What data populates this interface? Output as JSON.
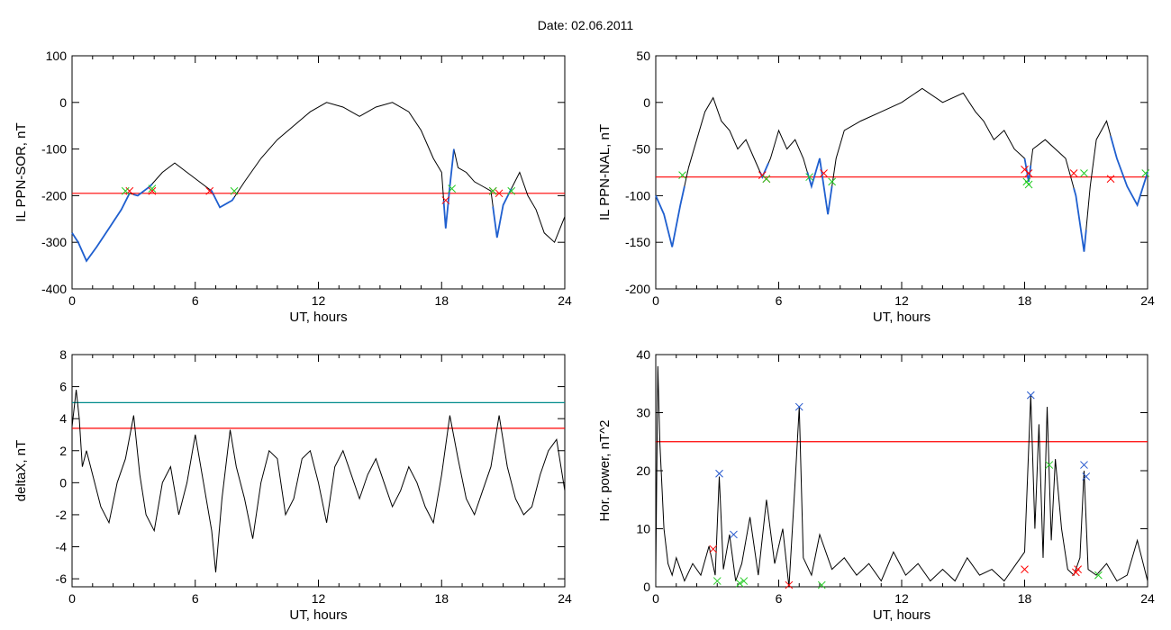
{
  "figure": {
    "title": "Date:  02.06.2011"
  },
  "colors": {
    "trace": "#000000",
    "threshold": "#ff0000",
    "second_threshold": "#008b8b",
    "disturbed_segment": "#1f5fcf",
    "start_marker": "#ff0000",
    "end_marker": "#22cc22",
    "peak_marker": "#2255cc"
  },
  "chart_data": [
    {
      "id": "sor",
      "type": "line",
      "title": "",
      "xlabel": "UT, hours",
      "ylabel": "IL PPN-SOR, nT",
      "xlim": [
        0,
        24
      ],
      "ylim": [
        -400,
        100
      ],
      "xticks": [
        0,
        6,
        12,
        18,
        24
      ],
      "yticks": [
        -400,
        -300,
        -200,
        -100,
        0,
        100
      ],
      "threshold": -195,
      "x": [
        0,
        0.3,
        0.7,
        1.2,
        1.8,
        2.4,
        2.8,
        3.2,
        3.8,
        4.4,
        5.0,
        5.6,
        6.2,
        6.8,
        7.2,
        7.8,
        8.4,
        9.2,
        10.0,
        10.8,
        11.6,
        12.4,
        13.2,
        14.0,
        14.8,
        15.6,
        16.4,
        17.0,
        17.6,
        18.0,
        18.2,
        18.4,
        18.6,
        18.8,
        19.2,
        19.6,
        20.0,
        20.4,
        20.7,
        21.0,
        21.4,
        21.8,
        22.2,
        22.6,
        23.0,
        23.5,
        24.0
      ],
      "y": [
        -280,
        -300,
        -340,
        -310,
        -270,
        -230,
        -195,
        -200,
        -180,
        -150,
        -130,
        -150,
        -170,
        -190,
        -225,
        -210,
        -170,
        -120,
        -80,
        -50,
        -20,
        0,
        -10,
        -30,
        -10,
        0,
        -20,
        -60,
        -120,
        -150,
        -270,
        -180,
        -100,
        -140,
        -150,
        -170,
        -180,
        -190,
        -290,
        -220,
        -185,
        -150,
        -200,
        -230,
        -280,
        -300,
        -245
      ],
      "disturbed_intervals": [
        [
          0,
          2.8
        ],
        [
          3.0,
          3.9
        ],
        [
          6.7,
          7.9
        ],
        [
          18.1,
          18.6
        ],
        [
          20.5,
          21.4
        ]
      ],
      "start_markers": [
        [
          2.8,
          -190
        ],
        [
          3.9,
          -190
        ],
        [
          6.7,
          -190
        ],
        [
          18.2,
          -210
        ],
        [
          20.5,
          -190
        ],
        [
          20.8,
          -195
        ]
      ],
      "end_markers": [
        [
          2.6,
          -190
        ],
        [
          3.9,
          -185
        ],
        [
          7.9,
          -190
        ],
        [
          18.5,
          -185
        ],
        [
          20.5,
          -190
        ],
        [
          21.4,
          -190
        ]
      ]
    },
    {
      "id": "nal",
      "type": "line",
      "title": "",
      "xlabel": "UT, hours",
      "ylabel": "IL PPN-NAL, nT",
      "xlim": [
        0,
        24
      ],
      "ylim": [
        -200,
        50
      ],
      "xticks": [
        0,
        6,
        12,
        18,
        24
      ],
      "yticks": [
        -200,
        -150,
        -100,
        -50,
        0,
        50
      ],
      "threshold": -80,
      "x": [
        0,
        0.4,
        0.8,
        1.2,
        1.6,
        2.0,
        2.4,
        2.8,
        3.2,
        3.6,
        4.0,
        4.4,
        4.8,
        5.2,
        5.6,
        6.0,
        6.4,
        6.8,
        7.2,
        7.6,
        8.0,
        8.4,
        8.8,
        9.2,
        10.0,
        11.0,
        12.0,
        13.0,
        14.0,
        15.0,
        15.6,
        16.0,
        16.5,
        17.0,
        17.5,
        18.0,
        18.2,
        18.4,
        19.0,
        20.0,
        20.5,
        20.9,
        21.2,
        21.5,
        22.0,
        22.5,
        23.0,
        23.5,
        24.0
      ],
      "y": [
        -100,
        -120,
        -155,
        -110,
        -70,
        -40,
        -10,
        5,
        -20,
        -30,
        -50,
        -40,
        -60,
        -80,
        -60,
        -30,
        -50,
        -40,
        -60,
        -90,
        -60,
        -120,
        -60,
        -30,
        -20,
        -10,
        0,
        15,
        0,
        10,
        -10,
        -20,
        -40,
        -30,
        -50,
        -60,
        -85,
        -50,
        -40,
        -60,
        -100,
        -160,
        -90,
        -40,
        -20,
        -60,
        -90,
        -110,
        -75
      ],
      "disturbed_intervals": [
        [
          0,
          1.4
        ],
        [
          5.1,
          5.5
        ],
        [
          7.4,
          8.6
        ],
        [
          18.0,
          18.3
        ],
        [
          20.4,
          21.0
        ],
        [
          22.2,
          24.0
        ]
      ],
      "start_markers": [
        [
          5.2,
          -78
        ],
        [
          5.4,
          -82
        ],
        [
          8.2,
          -76
        ],
        [
          18.0,
          -72
        ],
        [
          18.2,
          -76
        ],
        [
          20.4,
          -76
        ],
        [
          22.2,
          -82
        ]
      ],
      "end_markers": [
        [
          1.3,
          -78
        ],
        [
          5.4,
          -82
        ],
        [
          7.5,
          -80
        ],
        [
          8.6,
          -85
        ],
        [
          18.1,
          -85
        ],
        [
          18.2,
          -88
        ],
        [
          20.9,
          -76
        ],
        [
          23.9,
          -76
        ]
      ]
    },
    {
      "id": "deltax",
      "type": "line",
      "title": "",
      "xlabel": "UT, hours",
      "ylabel": "deltaX, nT",
      "xlim": [
        0,
        24
      ],
      "ylim": [
        -6.5,
        8
      ],
      "xticks": [
        0,
        6,
        12,
        18,
        24
      ],
      "yticks": [
        -6,
        -4,
        -2,
        0,
        2,
        4,
        6,
        8
      ],
      "thresholds": [
        3.4,
        5.0
      ],
      "x": [
        0,
        0.2,
        0.35,
        0.5,
        0.7,
        1.0,
        1.4,
        1.8,
        2.2,
        2.6,
        3.0,
        3.3,
        3.6,
        4.0,
        4.4,
        4.8,
        5.2,
        5.6,
        6.0,
        6.4,
        6.8,
        7.0,
        7.3,
        7.7,
        8.0,
        8.4,
        8.8,
        9.2,
        9.6,
        10.0,
        10.4,
        10.8,
        11.2,
        11.6,
        12.0,
        12.4,
        12.8,
        13.2,
        13.6,
        14.0,
        14.4,
        14.8,
        15.2,
        15.6,
        16.0,
        16.4,
        16.8,
        17.2,
        17.6,
        18.0,
        18.4,
        18.8,
        19.2,
        19.6,
        20.0,
        20.4,
        20.8,
        21.2,
        21.6,
        22.0,
        22.4,
        22.8,
        23.2,
        23.6,
        24.0
      ],
      "y": [
        3.5,
        5.8,
        4.0,
        1.0,
        2.0,
        0.5,
        -1.5,
        -2.5,
        0.0,
        1.5,
        4.2,
        0.5,
        -2.0,
        -3.0,
        0.0,
        1.0,
        -2.0,
        0.0,
        3.0,
        0.0,
        -3.0,
        -5.6,
        -1.0,
        3.3,
        1.0,
        -1.0,
        -3.5,
        0.0,
        2.0,
        1.5,
        -2.0,
        -1.0,
        1.5,
        2.0,
        0.0,
        -2.5,
        1.0,
        2.0,
        0.5,
        -1.0,
        0.5,
        1.5,
        0.0,
        -1.5,
        -0.5,
        1.0,
        0.0,
        -1.5,
        -2.5,
        0.5,
        4.2,
        1.5,
        -1.0,
        -2.0,
        -0.5,
        1.0,
        4.2,
        1.0,
        -1.0,
        -2.0,
        -1.5,
        0.5,
        2.0,
        2.7,
        -0.5
      ],
      "crossing_x": [
        3.0,
        7.7,
        18.4,
        20.8
      ]
    },
    {
      "id": "power",
      "type": "line",
      "title": "",
      "xlabel": "UT, hours",
      "ylabel": "Hor. power, nT^2",
      "xlim": [
        0,
        24
      ],
      "ylim": [
        0,
        40
      ],
      "xticks": [
        0,
        6,
        12,
        18,
        24
      ],
      "yticks": [
        0,
        10,
        20,
        30,
        40
      ],
      "threshold": 25,
      "x": [
        0,
        0.1,
        0.2,
        0.4,
        0.6,
        0.8,
        1.0,
        1.4,
        1.8,
        2.2,
        2.6,
        2.9,
        3.1,
        3.3,
        3.6,
        3.9,
        4.2,
        4.6,
        5.0,
        5.4,
        5.8,
        6.2,
        6.5,
        6.8,
        7.0,
        7.2,
        7.6,
        8.0,
        8.6,
        9.2,
        9.8,
        10.4,
        11.0,
        11.6,
        12.2,
        12.8,
        13.4,
        14.0,
        14.6,
        15.2,
        15.8,
        16.4,
        17.0,
        17.6,
        18.0,
        18.3,
        18.5,
        18.7,
        18.9,
        19.1,
        19.3,
        19.5,
        19.8,
        20.1,
        20.4,
        20.7,
        20.9,
        21.1,
        21.5,
        22.0,
        22.5,
        23.0,
        23.5,
        24.0
      ],
      "y": [
        2,
        38,
        25,
        10,
        4,
        2,
        5,
        1,
        4,
        2,
        7,
        2,
        19,
        3,
        9,
        1,
        4,
        12,
        2,
        15,
        4,
        10,
        0,
        18,
        31,
        5,
        2,
        9,
        3,
        5,
        2,
        4,
        1,
        6,
        2,
        4,
        1,
        3,
        1,
        5,
        2,
        3,
        1,
        4,
        6,
        33,
        10,
        28,
        5,
        31,
        8,
        22,
        10,
        3,
        2,
        5,
        20,
        3,
        2,
        4,
        1,
        2,
        8,
        1
      ],
      "start_markers": [
        [
          2.8,
          6.5
        ],
        [
          6.5,
          0.3
        ],
        [
          18.0,
          3
        ],
        [
          20.5,
          2.5
        ],
        [
          20.6,
          3
        ]
      ],
      "end_markers": [
        [
          3.0,
          1
        ],
        [
          4.1,
          0.6
        ],
        [
          4.3,
          1
        ],
        [
          8.1,
          0.3
        ],
        [
          19.2,
          21
        ],
        [
          21.6,
          2
        ]
      ],
      "peak_markers": [
        [
          3.1,
          19.5
        ],
        [
          3.8,
          9
        ],
        [
          7.0,
          31
        ],
        [
          18.3,
          33
        ],
        [
          20.9,
          21
        ],
        [
          21.0,
          19
        ]
      ]
    }
  ]
}
